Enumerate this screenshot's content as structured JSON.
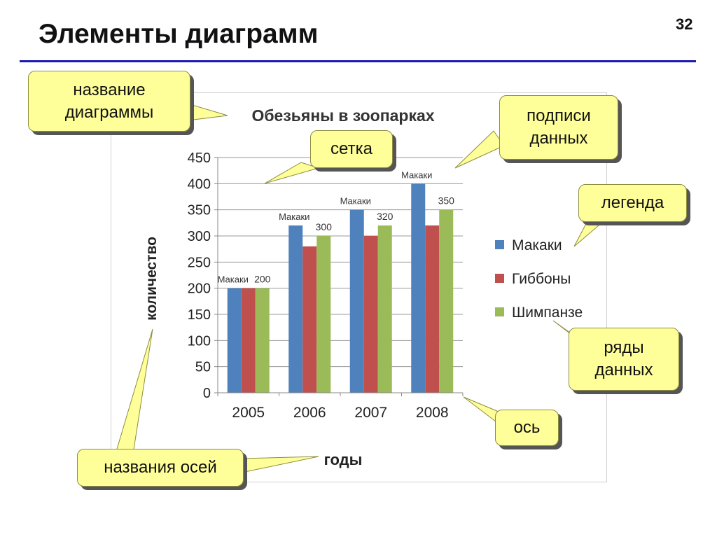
{
  "slide": {
    "title": "Элементы диаграмм",
    "number": "32"
  },
  "callouts": {
    "chart_title": "название диаграммы",
    "grid": "сетка",
    "data_labels": "подписи данных",
    "legend": "легенда",
    "series": "ряды данных",
    "axis": "ось",
    "axis_titles": "названия осей"
  },
  "chart_data": {
    "type": "bar",
    "title": "Обезьяны в зоопарках",
    "xlabel": "годы",
    "ylabel": "количество",
    "categories": [
      "2005",
      "2006",
      "2007",
      "2008"
    ],
    "ylim": [
      0,
      450
    ],
    "yticks": [
      "0",
      "50",
      "100",
      "150",
      "200",
      "250",
      "300",
      "350",
      "400",
      "450"
    ],
    "grid": true,
    "legend_position": "right",
    "series": [
      {
        "name": "Макаки",
        "values": [
          200,
          320,
          350,
          400
        ],
        "labels": [
          "Макаки",
          "Макаки",
          "Макаки",
          "Макаки"
        ],
        "color": "#4f81bd"
      },
      {
        "name": "Гиббоны",
        "values": [
          200,
          280,
          300,
          320
        ],
        "labels": [
          "",
          "",
          "",
          ""
        ],
        "color": "#c0504d"
      },
      {
        "name": "Шимпанзе",
        "values": [
          200,
          300,
          320,
          350
        ],
        "labels": [
          "200",
          "300",
          "320",
          "350"
        ],
        "color": "#9bbb59"
      }
    ]
  }
}
